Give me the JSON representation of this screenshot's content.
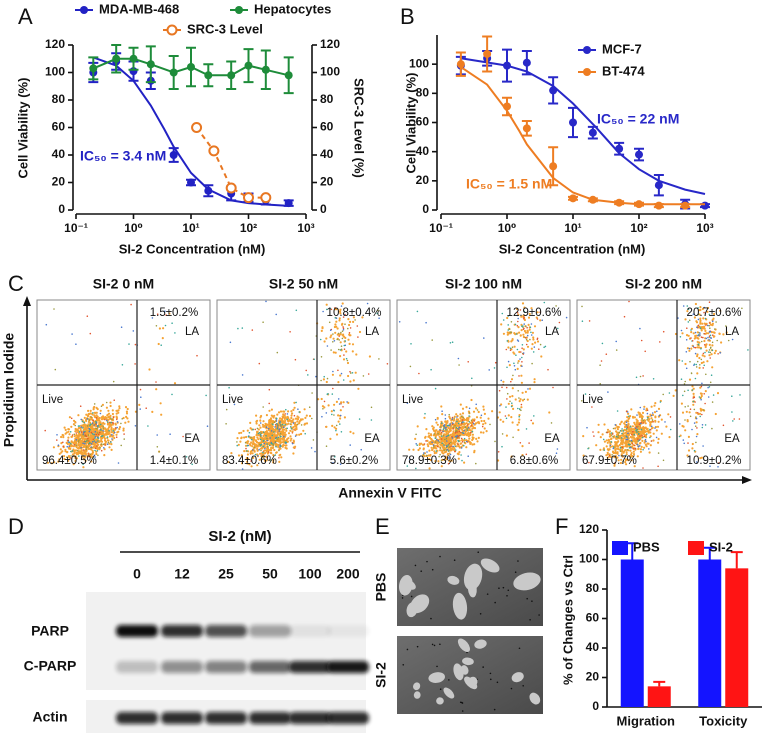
{
  "chart_data": [
    {
      "label": "A",
      "type": "line",
      "xscale": "log",
      "xlabel": "SI-2 Concentration (nM)",
      "ylabel": "Cell Viability (%)",
      "y2label": "SRC-3 Level (%)",
      "xlim": [
        0.1,
        1000
      ],
      "xticks": [
        {
          "value": 0.1,
          "label": "10⁻¹"
        },
        {
          "value": 1,
          "label": "10⁰"
        },
        {
          "value": 10,
          "label": "10¹"
        },
        {
          "value": 100,
          "label": "10²"
        },
        {
          "value": 1000,
          "label": "10³"
        }
      ],
      "ylim": [
        0,
        120
      ],
      "yticks": [
        0,
        20,
        40,
        60,
        80,
        100,
        120
      ],
      "y2lim": [
        0,
        120
      ],
      "y2ticks": [
        0,
        20,
        40,
        60,
        80,
        100,
        120
      ],
      "series": [
        {
          "name": "MDA-MB-468",
          "color": "#2222c4",
          "x": [
            0.2,
            0.5,
            1,
            2,
            5,
            10,
            20,
            50,
            100,
            200,
            500
          ],
          "values": [
            100,
            108,
            101,
            94,
            40,
            20,
            14,
            12,
            9,
            7,
            5
          ],
          "errors": [
            7,
            6,
            7,
            6,
            5,
            2,
            4,
            5,
            3,
            3,
            2
          ],
          "fit": {
            "x": [
              0.2,
              0.5,
              1,
              2,
              3.4,
              5,
              10,
              20,
              50,
              100,
              200,
              500
            ],
            "values": [
              111,
              105,
              94,
              76,
              59,
              46,
              27,
              15,
              7,
              5,
              4,
              3
            ]
          },
          "annotation": "IC₅₀ = 3.4 nM"
        },
        {
          "name": "Hepatocytes",
          "color": "#1e8c3a",
          "connect": true,
          "x": [
            0.2,
            0.5,
            1,
            2,
            5,
            10,
            20,
            50,
            100,
            200,
            500
          ],
          "values": [
            103,
            110,
            110,
            106,
            100,
            104,
            98,
            98,
            105,
            102,
            98
          ],
          "errors": [
            8,
            10,
            8,
            13,
            12,
            14,
            8,
            10,
            12,
            14,
            13
          ]
        },
        {
          "name": "SRC-3 Level",
          "color": "#e87722",
          "axis": "y2",
          "connect": true,
          "dashed": true,
          "marker": "open",
          "x": [
            12.5,
            25,
            50,
            100,
            200
          ],
          "values": [
            60,
            43,
            16,
            9,
            9
          ]
        }
      ]
    },
    {
      "label": "B",
      "type": "line",
      "xscale": "log",
      "xlabel": "SI-2 Concentration (nM)",
      "ylabel": "Cell Viability (%)",
      "xlim": [
        0.1,
        1000
      ],
      "xticks": [
        {
          "value": 0.1,
          "label": "10⁻¹"
        },
        {
          "value": 1,
          "label": "10⁰"
        },
        {
          "value": 10,
          "label": "10¹"
        },
        {
          "value": 100,
          "label": "10²"
        },
        {
          "value": 1000,
          "label": "10³"
        }
      ],
      "ylim": [
        0,
        120
      ],
      "yticks": [
        0,
        20,
        40,
        60,
        80,
        100
      ],
      "series": [
        {
          "name": "MCF-7",
          "color": "#2828c8",
          "x": [
            0.2,
            0.5,
            1,
            2,
            5,
            10,
            20,
            50,
            100,
            200,
            500,
            1000
          ],
          "values": [
            99,
            104,
            99,
            101,
            82,
            60,
            53,
            42,
            38,
            17,
            4,
            3
          ],
          "errors": [
            6,
            5,
            11,
            8,
            9,
            10,
            4,
            4,
            4,
            7,
            3,
            1
          ],
          "fit": {
            "x": [
              0.2,
              1,
              2,
              5,
              10,
              22,
              50,
              100,
              200,
              500,
              1000
            ],
            "values": [
              104,
              99,
              95,
              85,
              73,
              57,
              39,
              28,
              20,
              14,
              11
            ]
          },
          "annotation": "IC₅₀ = 22 nM"
        },
        {
          "name": "BT-474",
          "color": "#ee7d22",
          "x": [
            0.2,
            0.5,
            1,
            2,
            5,
            10,
            20,
            50,
            100,
            200,
            500
          ],
          "values": [
            100,
            107,
            71,
            56,
            30,
            8,
            7,
            5,
            4,
            3,
            3
          ],
          "errors": [
            8,
            12,
            6,
            5,
            13,
            1,
            1,
            1,
            1,
            1,
            1
          ],
          "fit": {
            "x": [
              0.2,
              0.5,
              1,
              1.5,
              2,
              5,
              10,
              20,
              50,
              100,
              1000
            ],
            "values": [
              98,
              86,
              68,
              55,
              45,
              22,
              12,
              7,
              5,
              4,
              4
            ]
          },
          "annotation": "IC₅₀ = 1.5 nM"
        }
      ]
    },
    {
      "label": "F",
      "type": "bar",
      "ylabel": "% of Changes vs Ctrl",
      "categories": [
        "Migration",
        "Toxicity"
      ],
      "ylim": [
        0,
        120
      ],
      "yticks": [
        0,
        20,
        40,
        60,
        80,
        100,
        120
      ],
      "series": [
        {
          "name": "PBS",
          "color": "#1414ff",
          "values": [
            100,
            100
          ],
          "errors": [
            11,
            8
          ]
        },
        {
          "name": "SI-2",
          "color": "#ff1414",
          "values": [
            14,
            94
          ],
          "errors": [
            3,
            11
          ]
        }
      ]
    }
  ],
  "flow": {
    "label": "C",
    "ylabel": "Propidium Iodide",
    "xlabel": "Annexin V FITC",
    "quadrants": {
      "la": "LA",
      "ea": "EA",
      "live": "Live"
    },
    "plots": [
      {
        "title": "SI-2 0 nM",
        "la": "1.5±0.2%",
        "ea": "1.4±0.1%",
        "live": "96.4±0.5%"
      },
      {
        "title": "SI-2 50 nM",
        "la": "10.8±0.4%",
        "ea": "5.6±0.2%",
        "live": "83.4±0.6%"
      },
      {
        "title": "SI-2 100 nM",
        "la": "12.9±0.6%",
        "ea": "6.8±0.6%",
        "live": "78.9±0.3%"
      },
      {
        "title": "SI-2 200 nM",
        "la": "20.7±0.6%",
        "ea": "10.9±0.2%",
        "live": "67.9±0.7%"
      }
    ]
  },
  "blot": {
    "label": "D",
    "title": "SI-2 (nM)",
    "lanes": [
      "0",
      "12",
      "25",
      "50",
      "100",
      "200"
    ],
    "rows": [
      "PARP",
      "C-PARP",
      "Actin"
    ]
  },
  "images": {
    "label": "E",
    "rows": [
      "PBS",
      "SI-2"
    ]
  }
}
